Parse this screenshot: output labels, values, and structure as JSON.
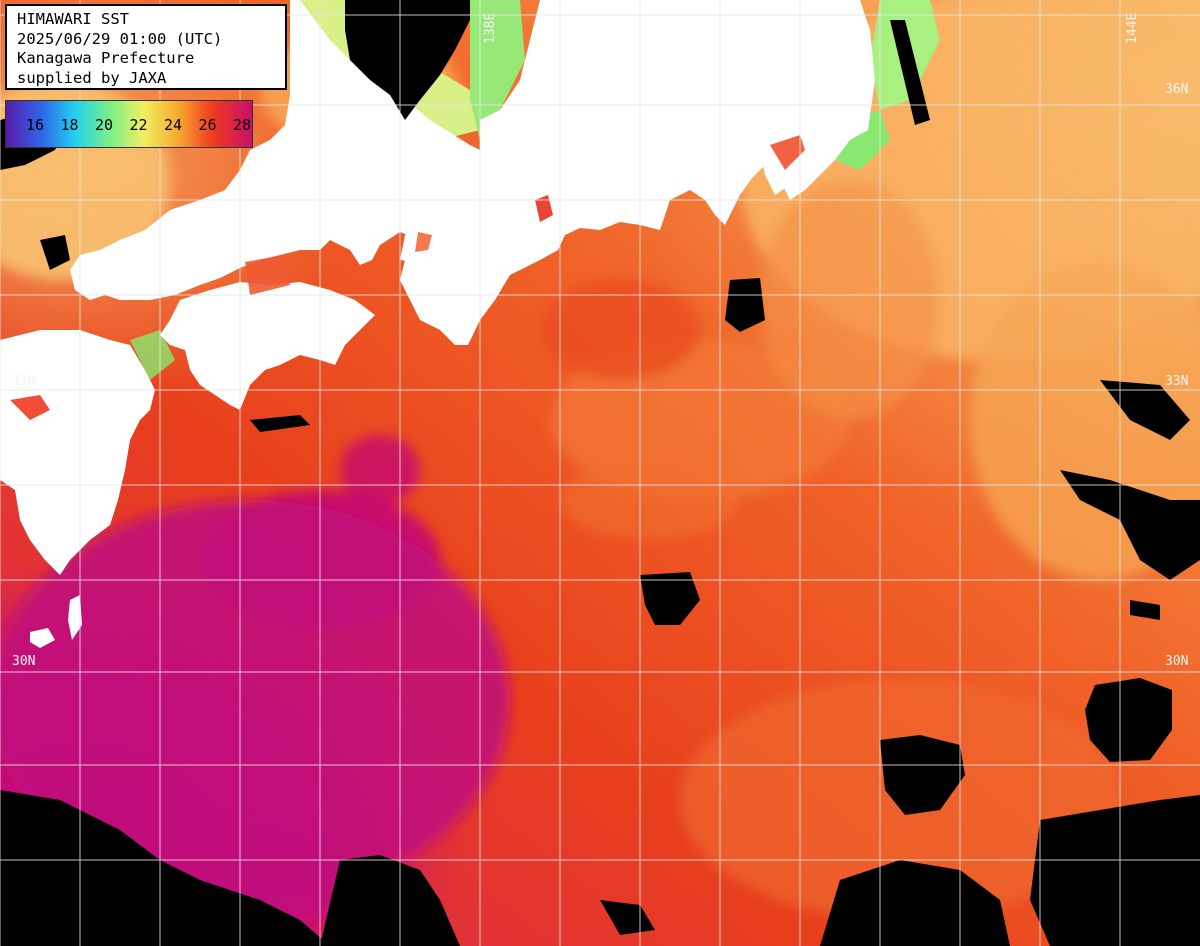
{
  "info": {
    "line1": "HIMAWARI SST",
    "line2": "2025/06/29 01:00 (UTC)",
    "line3": "Kanagawa Prefecture",
    "line4": "supplied by JAXA"
  },
  "legend": {
    "ticks": [
      "16",
      "18",
      "20",
      "22",
      "24",
      "26",
      "28"
    ],
    "gradient_colors": [
      "#5a1aa8",
      "#2e62e8",
      "#22d0f0",
      "#78f088",
      "#f0f060",
      "#f8a830",
      "#f03a20",
      "#c8106a"
    ]
  },
  "grid_labels": {
    "lat_36": "36N",
    "lat_33": "33N",
    "lat_30": "30N",
    "lon_144": "144E",
    "lon_138": "138E"
  },
  "colors": {
    "land": "#ffffff",
    "no_data": "#000000",
    "grid": "#e6e6e6",
    "warm_magenta": "#c0107a",
    "kuroshio_red": "#e8401c",
    "orange": "#f47830",
    "cool_yellow": "#f8b860",
    "coastal_green": "#88e870"
  }
}
